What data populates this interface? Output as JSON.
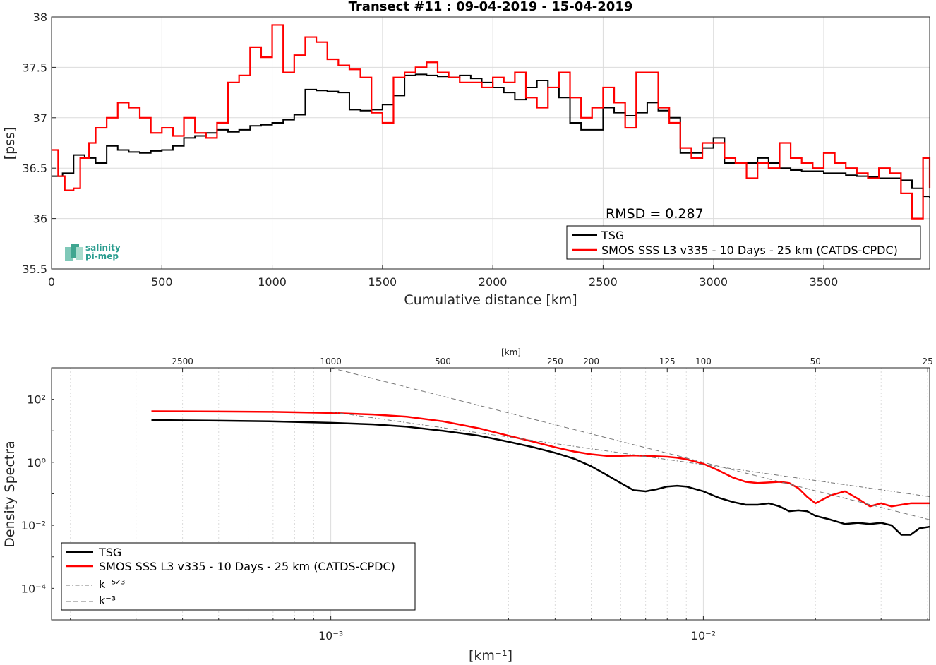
{
  "chart_data": [
    {
      "type": "line",
      "title": "Transect #11 : 09-04-2019 - 15-04-2019",
      "xlabel": "Cumulative distance [km]",
      "ylabel": "[pss]",
      "xlim": [
        0,
        3980
      ],
      "ylim": [
        35.5,
        38
      ],
      "xticks": [
        0,
        500,
        1000,
        1500,
        2000,
        2500,
        3000,
        3500
      ],
      "yticks": [
        35.5,
        36,
        36.5,
        37,
        37.5,
        38
      ],
      "grid": true,
      "legend_position": "bottom-right",
      "annotation": "RMSD = 0.287",
      "logo_text": [
        "salinity",
        "pi-mep"
      ],
      "series": [
        {
          "name": "TSG",
          "color": "#000000",
          "x": [
            0,
            50,
            100,
            150,
            200,
            250,
            300,
            350,
            400,
            450,
            500,
            550,
            600,
            650,
            700,
            750,
            800,
            850,
            900,
            950,
            1000,
            1050,
            1100,
            1150,
            1200,
            1250,
            1300,
            1350,
            1400,
            1450,
            1500,
            1550,
            1600,
            1650,
            1700,
            1750,
            1800,
            1850,
            1900,
            1950,
            2000,
            2050,
            2100,
            2150,
            2200,
            2250,
            2300,
            2350,
            2400,
            2450,
            2500,
            2550,
            2600,
            2650,
            2700,
            2750,
            2800,
            2850,
            2900,
            2950,
            3000,
            3050,
            3100,
            3150,
            3200,
            3250,
            3300,
            3350,
            3400,
            3450,
            3500,
            3550,
            3600,
            3650,
            3700,
            3750,
            3800,
            3850,
            3900,
            3950,
            3980
          ],
          "y": [
            36.42,
            36.45,
            36.63,
            36.6,
            36.55,
            36.72,
            36.68,
            36.66,
            36.65,
            36.67,
            36.68,
            36.72,
            36.8,
            36.82,
            36.85,
            36.88,
            36.86,
            36.88,
            36.92,
            36.93,
            36.95,
            36.98,
            37.03,
            37.28,
            37.27,
            37.26,
            37.25,
            37.08,
            37.07,
            37.08,
            37.13,
            37.22,
            37.42,
            37.43,
            37.42,
            37.41,
            37.4,
            37.42,
            37.39,
            37.35,
            37.3,
            37.25,
            37.18,
            37.3,
            37.37,
            37.3,
            37.2,
            36.95,
            36.88,
            36.88,
            37.1,
            37.05,
            37.02,
            37.05,
            37.15,
            37.07,
            37.0,
            36.65,
            36.65,
            36.7,
            36.8,
            36.55,
            36.55,
            36.55,
            36.6,
            36.55,
            36.5,
            36.48,
            36.47,
            36.47,
            36.45,
            36.45,
            36.43,
            36.42,
            36.41,
            36.4,
            36.4,
            36.38,
            36.3,
            36.22,
            36.2
          ]
        },
        {
          "name": "SMOS SSS L3 v335 - 10 Days - 25 km (CATDS-CPDC)",
          "color": "#ff0000",
          "x": [
            0,
            30,
            60,
            100,
            130,
            170,
            200,
            250,
            300,
            350,
            400,
            450,
            500,
            550,
            600,
            650,
            700,
            750,
            800,
            850,
            900,
            950,
            1000,
            1050,
            1100,
            1150,
            1200,
            1250,
            1300,
            1350,
            1400,
            1450,
            1500,
            1550,
            1600,
            1650,
            1700,
            1750,
            1800,
            1850,
            1900,
            1950,
            2000,
            2050,
            2100,
            2150,
            2200,
            2250,
            2300,
            2350,
            2400,
            2450,
            2500,
            2550,
            2600,
            2650,
            2700,
            2750,
            2800,
            2850,
            2900,
            2950,
            3000,
            3050,
            3100,
            3150,
            3200,
            3250,
            3300,
            3350,
            3400,
            3450,
            3500,
            3550,
            3600,
            3650,
            3700,
            3750,
            3800,
            3850,
            3900,
            3950,
            3980
          ],
          "y": [
            36.68,
            36.42,
            36.28,
            36.3,
            36.6,
            36.75,
            36.9,
            37.0,
            37.15,
            37.1,
            37.0,
            36.85,
            36.9,
            36.82,
            37.0,
            36.85,
            36.8,
            36.95,
            37.35,
            37.42,
            37.7,
            37.6,
            37.92,
            37.45,
            37.62,
            37.8,
            37.75,
            37.58,
            37.52,
            37.48,
            37.4,
            37.05,
            36.95,
            37.4,
            37.45,
            37.5,
            37.55,
            37.45,
            37.4,
            37.35,
            37.35,
            37.3,
            37.4,
            37.35,
            37.45,
            37.2,
            37.1,
            37.3,
            37.45,
            37.2,
            37.0,
            37.1,
            37.3,
            37.15,
            36.9,
            37.45,
            37.45,
            37.1,
            36.95,
            36.7,
            36.6,
            36.75,
            36.75,
            36.6,
            36.55,
            36.4,
            36.55,
            36.5,
            36.75,
            36.6,
            36.55,
            36.5,
            36.65,
            36.55,
            36.5,
            36.45,
            36.4,
            36.5,
            36.45,
            36.25,
            36.0,
            36.6,
            36.3
          ]
        }
      ]
    },
    {
      "type": "line",
      "xlabel": "[km⁻¹]",
      "ylabel": "Density Spectra",
      "top_axis_label": "[km]",
      "xscale": "log",
      "yscale": "log",
      "xlim": [
        0.000178,
        0.0405
      ],
      "ylim": [
        1e-05,
        1000
      ],
      "xticks": [
        "10⁻³",
        "10⁻²"
      ],
      "yticks": [
        "10⁻⁴",
        "10⁻²",
        "10⁰",
        "10²"
      ],
      "top_ticks": [
        2500,
        1000,
        500,
        250,
        200,
        125,
        100,
        50,
        25
      ],
      "grid": true,
      "legend_position": "bottom-left",
      "series": [
        {
          "name": "TSG",
          "color": "#000000",
          "x": [
            0.00033,
            0.0005,
            0.0007,
            0.001,
            0.0013,
            0.0016,
            0.002,
            0.0025,
            0.003,
            0.0035,
            0.004,
            0.0045,
            0.005,
            0.0055,
            0.006,
            0.0065,
            0.007,
            0.0075,
            0.008,
            0.0085,
            0.009,
            0.01,
            0.011,
            0.012,
            0.013,
            0.014,
            0.015,
            0.016,
            0.017,
            0.018,
            0.019,
            0.02,
            0.022,
            0.024,
            0.026,
            0.028,
            0.03,
            0.032,
            0.034,
            0.036,
            0.038,
            0.0405
          ],
          "y": [
            22,
            21,
            20,
            18,
            16,
            13.5,
            10,
            7,
            4.5,
            3.0,
            2.0,
            1.3,
            0.75,
            0.4,
            0.22,
            0.13,
            0.12,
            0.14,
            0.17,
            0.18,
            0.17,
            0.12,
            0.075,
            0.055,
            0.045,
            0.045,
            0.05,
            0.04,
            0.028,
            0.03,
            0.028,
            0.02,
            0.015,
            0.011,
            0.012,
            0.011,
            0.012,
            0.01,
            0.005,
            0.005,
            0.008,
            0.009
          ]
        },
        {
          "name": "SMOS SSS L3 v335 - 10 Days - 25 km (CATDS-CPDC)",
          "color": "#ff0000",
          "x": [
            0.00033,
            0.0005,
            0.0007,
            0.001,
            0.0013,
            0.0016,
            0.002,
            0.0025,
            0.003,
            0.0035,
            0.004,
            0.0045,
            0.005,
            0.0055,
            0.006,
            0.0065,
            0.007,
            0.0075,
            0.008,
            0.0085,
            0.009,
            0.01,
            0.011,
            0.012,
            0.013,
            0.014,
            0.015,
            0.016,
            0.017,
            0.018,
            0.019,
            0.02,
            0.022,
            0.024,
            0.026,
            0.028,
            0.03,
            0.032,
            0.034,
            0.036,
            0.038,
            0.0405
          ],
          "y": [
            42,
            41,
            40,
            37,
            33,
            28,
            20,
            12,
            7,
            4.5,
            3.0,
            2.2,
            1.8,
            1.6,
            1.6,
            1.65,
            1.6,
            1.55,
            1.5,
            1.4,
            1.25,
            0.9,
            0.55,
            0.33,
            0.24,
            0.22,
            0.23,
            0.24,
            0.22,
            0.15,
            0.08,
            0.05,
            0.09,
            0.12,
            0.07,
            0.04,
            0.05,
            0.04,
            0.045,
            0.05,
            0.05,
            0.05
          ]
        },
        {
          "name": "k⁻⁵ᐟ³",
          "color": "#777777",
          "style": "dash-dot",
          "x": [
            0.001,
            0.0405
          ],
          "y": [
            40,
            0.0812
          ]
        },
        {
          "name": "k⁻³",
          "color": "#777777",
          "style": "dashed",
          "x": [
            0.001,
            0.0405
          ],
          "y": [
            1000,
            0.01505
          ]
        }
      ]
    }
  ]
}
